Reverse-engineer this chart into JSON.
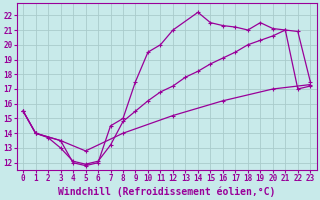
{
  "xlabel": "Windchill (Refroidissement éolien,°C)",
  "bg_color": "#c8eaea",
  "line_color": "#990099",
  "grid_color": "#aacccc",
  "xlim": [
    -0.5,
    23.5
  ],
  "ylim": [
    11.5,
    22.8
  ],
  "xticks": [
    0,
    1,
    2,
    3,
    4,
    5,
    6,
    7,
    8,
    9,
    10,
    11,
    12,
    13,
    14,
    15,
    16,
    17,
    18,
    19,
    20,
    21,
    22,
    23
  ],
  "yticks": [
    12,
    13,
    14,
    15,
    16,
    17,
    18,
    19,
    20,
    21,
    22
  ],
  "line1_x": [
    0,
    1,
    3,
    4,
    5,
    6,
    7,
    8,
    9,
    10,
    11,
    12,
    14,
    15,
    16,
    17,
    18,
    19,
    20,
    21,
    22,
    23
  ],
  "line1_y": [
    15.5,
    14.0,
    13.5,
    12.0,
    11.8,
    12.0,
    14.5,
    15.0,
    17.5,
    19.5,
    20.0,
    21.0,
    22.2,
    21.5,
    21.3,
    21.2,
    21.0,
    21.5,
    21.1,
    21.0,
    20.9,
    17.5
  ],
  "line2_x": [
    0,
    1,
    2,
    3,
    4,
    5,
    6,
    7,
    8,
    9,
    10,
    11,
    12,
    13,
    14,
    15,
    16,
    17,
    18,
    19,
    20,
    21,
    22,
    23
  ],
  "line2_y": [
    15.5,
    14.0,
    13.7,
    13.0,
    12.1,
    11.9,
    12.1,
    13.2,
    14.8,
    15.5,
    16.2,
    16.8,
    17.2,
    17.8,
    18.2,
    18.7,
    19.1,
    19.5,
    20.0,
    20.3,
    20.6,
    21.0,
    17.0,
    17.2
  ],
  "line3_x": [
    0,
    1,
    3,
    5,
    8,
    12,
    16,
    20,
    23
  ],
  "line3_y": [
    15.5,
    14.0,
    13.5,
    12.8,
    14.0,
    15.2,
    16.2,
    17.0,
    17.3
  ],
  "font_size_label": 7,
  "font_size_tick": 5.5,
  "marker": "+"
}
